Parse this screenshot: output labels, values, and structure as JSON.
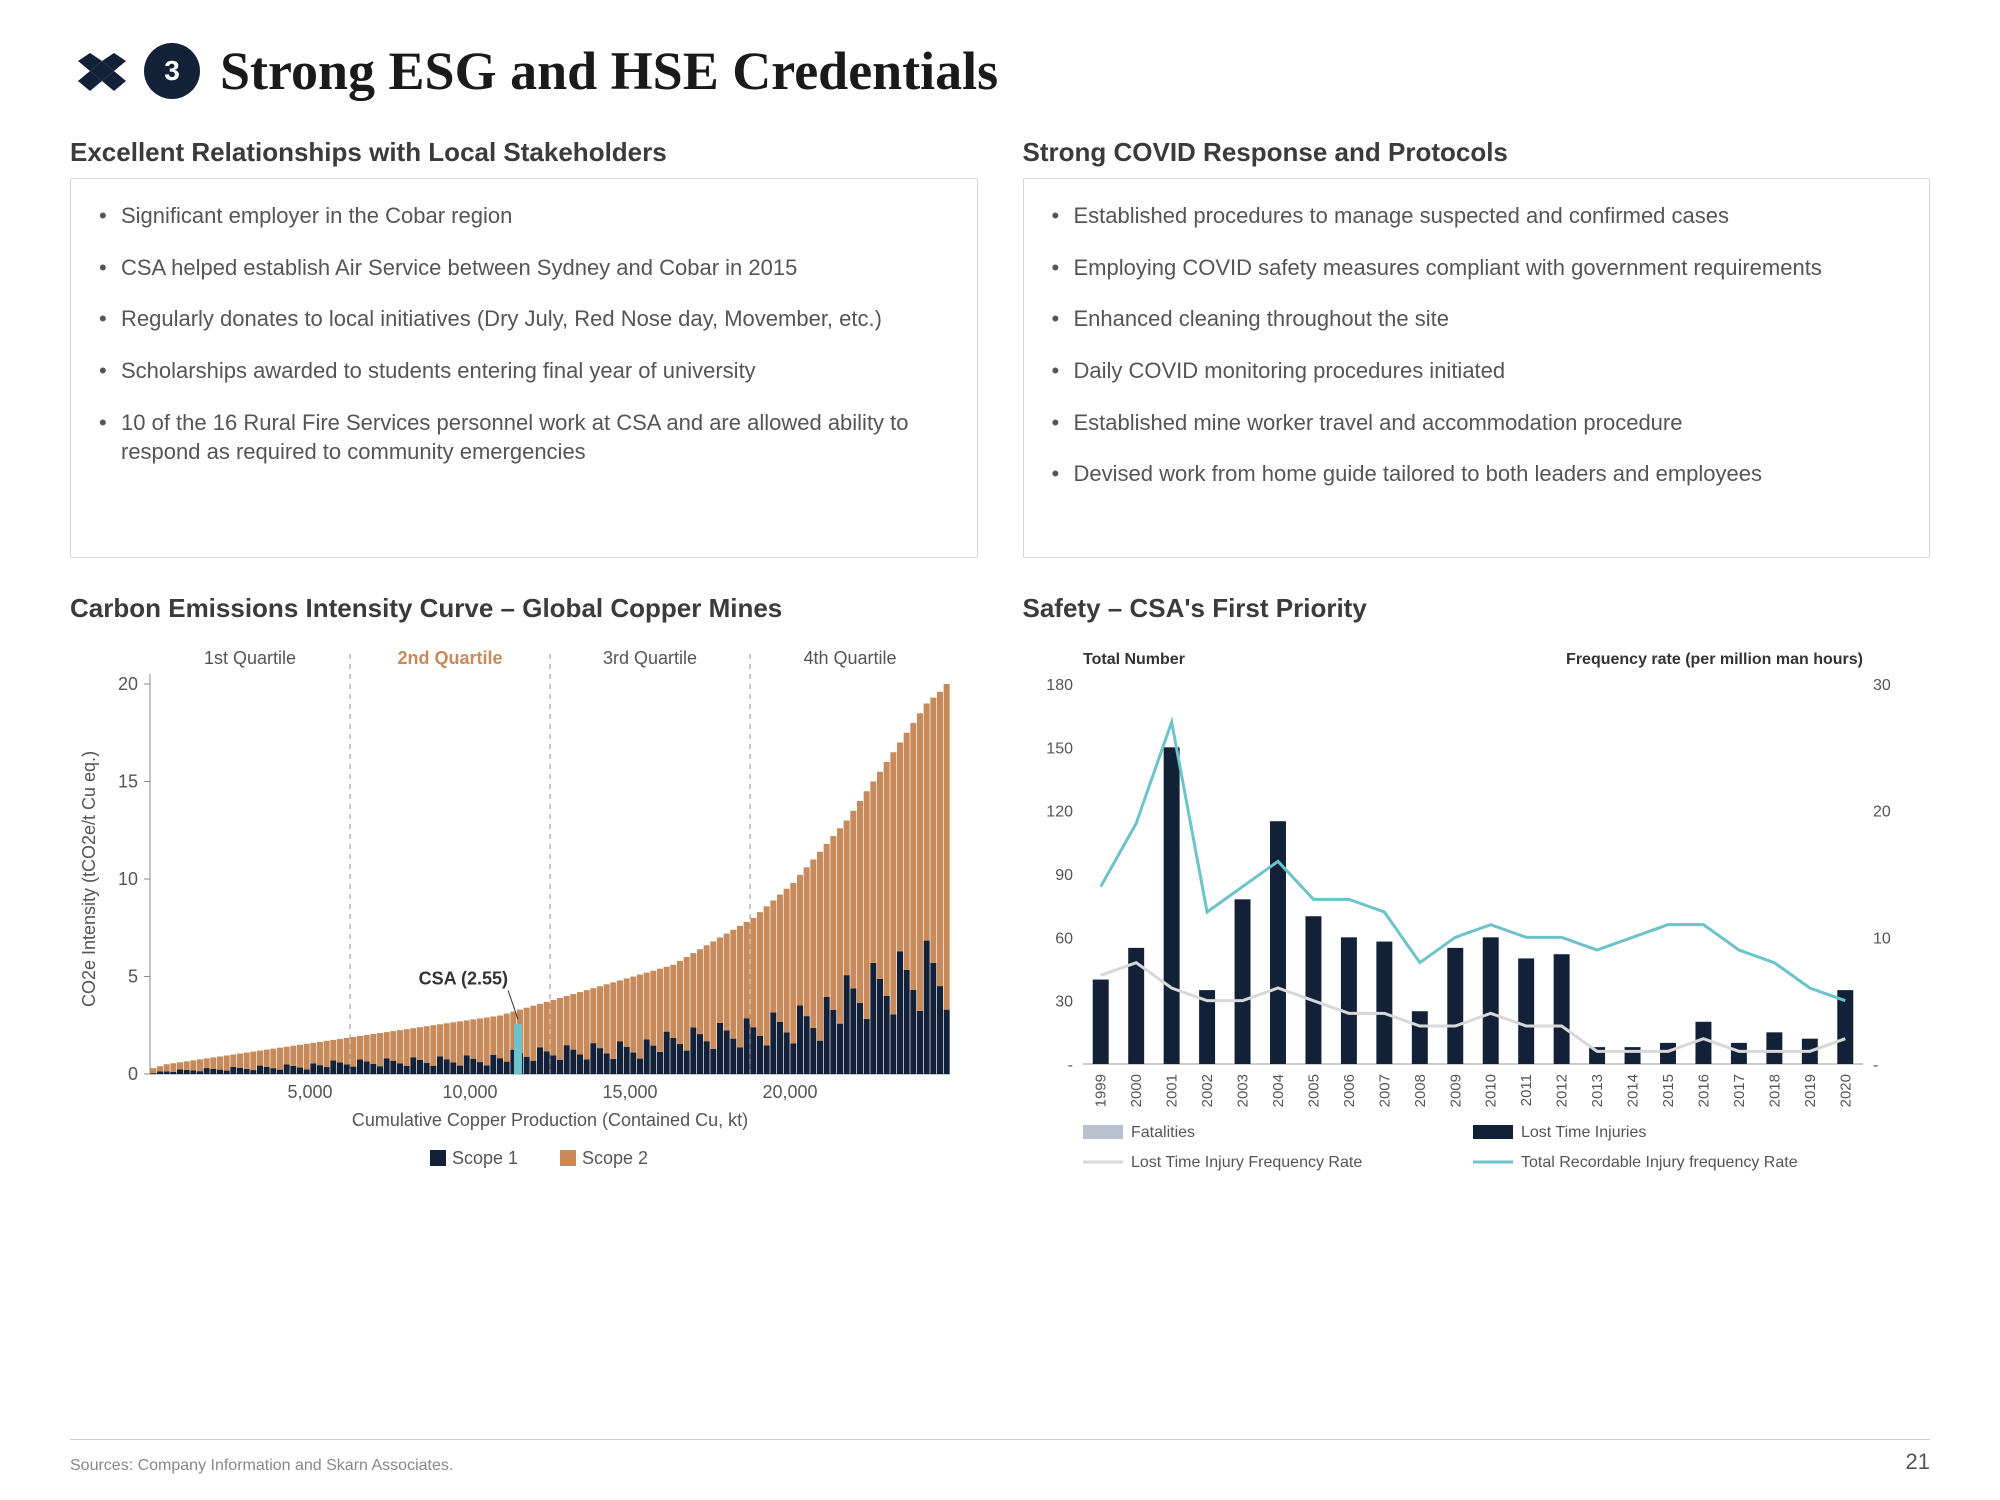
{
  "header": {
    "badge_number": "3",
    "title": "Strong ESG and HSE Credentials"
  },
  "left_top": {
    "title": "Excellent Relationships with Local Stakeholders",
    "bullets": [
      "Significant employer in the Cobar region",
      "CSA helped establish Air Service between Sydney and Cobar in 2015",
      "Regularly donates to local initiatives (Dry July, Red Nose day, Movember, etc.)",
      "Scholarships awarded to students entering final year of university",
      "10 of the 16 Rural Fire Services personnel work at CSA and are allowed ability to respond as required to community emergencies"
    ]
  },
  "right_top": {
    "title": "Strong COVID Response and Protocols",
    "bullets": [
      "Established procedures to manage suspected and confirmed cases",
      "Employing COVID safety measures compliant with government requirements",
      "Enhanced cleaning throughout the site",
      "Daily COVID monitoring procedures initiated",
      "Established mine worker travel and accommodation procedure",
      "Devised work from home guide tailored to both leaders and employees"
    ]
  },
  "left_chart": {
    "title": "Carbon Emissions Intensity Curve – Global Copper Mines",
    "type": "stacked-bar-curve",
    "ylabel": "CO2e Intensity (tCO2e/t Cu eq.)",
    "xlabel": "Cumulative Copper Production (Contained Cu, kt)",
    "ylim": [
      0,
      20
    ],
    "ytick_step": 5,
    "xlim": [
      0,
      25000
    ],
    "xticks": [
      5000,
      10000,
      15000,
      20000
    ],
    "quartile_labels": [
      "1st Quartile",
      "2nd Quartile",
      "3rd Quartile",
      "4th Quartile"
    ],
    "quartile_boundaries_x": [
      6250,
      12500,
      18750
    ],
    "csa_label": "CSA (2.55)",
    "csa_x": 11500,
    "csa_height": 2.55,
    "legend": [
      "Scope 1",
      "Scope 2"
    ],
    "colors": {
      "scope1": "#132138",
      "scope2": "#c88a5a",
      "csa_marker": "#6cc3c9",
      "grid": "#dcdcdc",
      "dash": "#b7b7b7",
      "quartile_highlight": "#c88a5a"
    },
    "bars_count": 120,
    "bars_sample_heights_total": [
      0.3,
      0.4,
      0.5,
      0.55,
      0.6,
      0.65,
      0.7,
      0.75,
      0.8,
      0.85,
      0.9,
      0.95,
      1.0,
      1.05,
      1.1,
      1.15,
      1.2,
      1.25,
      1.3,
      1.35,
      1.4,
      1.45,
      1.5,
      1.55,
      1.6,
      1.65,
      1.7,
      1.75,
      1.8,
      1.85,
      1.9,
      1.95,
      2.0,
      2.05,
      2.1,
      2.15,
      2.2,
      2.25,
      2.3,
      2.35,
      2.4,
      2.45,
      2.5,
      2.55,
      2.6,
      2.65,
      2.7,
      2.75,
      2.8,
      2.85,
      2.9,
      2.95,
      3.0,
      3.1,
      3.2,
      3.3,
      3.4,
      3.5,
      3.6,
      3.7,
      3.8,
      3.9,
      4.0,
      4.1,
      4.2,
      4.3,
      4.4,
      4.5,
      4.6,
      4.7,
      4.8,
      4.9,
      5.0,
      5.1,
      5.2,
      5.3,
      5.4,
      5.5,
      5.6,
      5.8,
      6.0,
      6.2,
      6.4,
      6.6,
      6.8,
      7.0,
      7.2,
      7.4,
      7.6,
      7.8,
      8.0,
      8.3,
      8.6,
      8.9,
      9.2,
      9.5,
      9.8,
      10.2,
      10.6,
      11.0,
      11.4,
      11.8,
      12.2,
      12.6,
      13.0,
      13.5,
      14.0,
      14.5,
      15.0,
      15.5,
      16.0,
      16.5,
      17.0,
      17.5,
      18.0,
      18.5,
      19.0,
      19.3,
      19.6,
      20.0
    ],
    "scope1_fraction_avg": 0.35,
    "label_fontsize": 18
  },
  "right_chart": {
    "title": "Safety – CSA's First Priority",
    "type": "bar-and-lines-dual-axis",
    "left_axis_label": "Total Number",
    "right_axis_label": "Frequency rate (per million man hours)",
    "left_ylim": [
      0,
      180
    ],
    "left_ytick_step": 30,
    "right_ylim": [
      0,
      30
    ],
    "right_ytick_step": 10,
    "years": [
      "1999",
      "2000",
      "2001",
      "2002",
      "2003",
      "2004",
      "2005",
      "2006",
      "2007",
      "2008",
      "2009",
      "2010",
      "2011",
      "2012",
      "2013",
      "2014",
      "2015",
      "2016",
      "2017",
      "2018",
      "2019",
      "2020"
    ],
    "series": {
      "fatalities": {
        "color": "#b9c3d0",
        "type": "bar",
        "label": "Fatalities",
        "values": [
          0,
          0,
          0,
          0,
          0,
          0,
          0,
          0,
          0,
          0,
          0,
          0,
          0,
          0,
          0,
          0,
          0,
          0,
          0,
          0,
          0,
          0
        ]
      },
      "lost_time_injuries": {
        "color": "#132138",
        "type": "bar",
        "label": "Lost Time Injuries",
        "values": [
          40,
          55,
          150,
          35,
          78,
          115,
          70,
          60,
          58,
          25,
          55,
          60,
          50,
          52,
          8,
          8,
          10,
          20,
          10,
          15,
          12,
          35
        ]
      },
      "lost_time_freq": {
        "color": "#d8d8d8",
        "type": "line",
        "label": "Lost Time Injury Frequency Rate",
        "values": [
          7,
          8,
          6,
          5,
          5,
          6,
          5,
          4,
          4,
          3,
          3,
          4,
          3,
          3,
          1,
          1,
          1,
          2,
          1,
          1,
          1,
          2
        ]
      },
      "total_recordable_freq": {
        "color": "#6cc3c9",
        "type": "line",
        "label": "Total Recordable Injury frequency Rate",
        "values": [
          14,
          19,
          27,
          12,
          14,
          16,
          13,
          13,
          12,
          8,
          10,
          11,
          10,
          10,
          9,
          10,
          11,
          11,
          9,
          8,
          6,
          5
        ]
      }
    },
    "label_fontsize": 18,
    "colors": {
      "axis": "#555",
      "text": "#3b3b3b"
    }
  },
  "footer": {
    "sources": "Sources: Company Information and Skarn Associates.",
    "page": "21"
  }
}
